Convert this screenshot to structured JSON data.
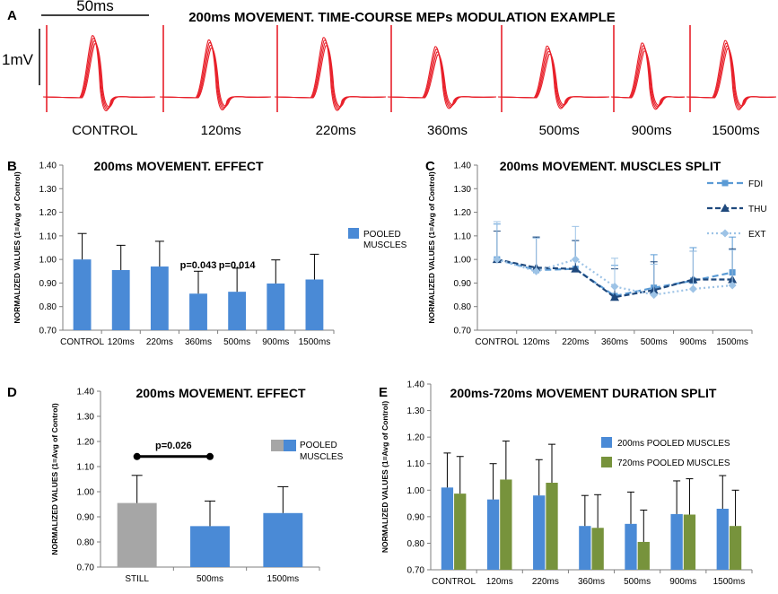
{
  "panelA": {
    "label": "A",
    "title": "200ms MOVEMENT. TIME-COURSE MEPs MODULATION EXAMPLE",
    "scale_time": "50ms",
    "scale_amp": "1mV",
    "trace_labels": [
      "CONTROL",
      "120ms",
      "220ms",
      "360ms",
      "500ms",
      "900ms",
      "1500ms"
    ],
    "trace_amplitudes": [
      1.0,
      0.93,
      0.97,
      0.82,
      0.83,
      0.88,
      0.92
    ],
    "colors": {
      "trace": "#e8202a"
    }
  },
  "chart_data": [
    {
      "panel": "B",
      "type": "bar",
      "title": "200ms MOVEMENT. EFFECT",
      "ylabel": "NORMALIZED VALUES (1=Avg of Control)",
      "ylim": [
        0.7,
        1.4
      ],
      "yticks": [
        "0.70",
        "0.80",
        "0.90",
        "1.00",
        "1.10",
        "1.20",
        "1.30",
        "1.40"
      ],
      "categories": [
        "CONTROL",
        "120ms",
        "220ms",
        "360ms",
        "500ms",
        "900ms",
        "1500ms"
      ],
      "series": [
        {
          "name": "POOLED MUSCLES",
          "color": "#4a8ad6",
          "values": [
            1.0,
            0.955,
            0.97,
            0.855,
            0.863,
            0.898,
            0.915
          ],
          "errors": [
            0.11,
            0.105,
            0.107,
            0.095,
            0.1,
            0.1,
            0.107
          ]
        }
      ],
      "legend": [
        "POOLED",
        "MUSCLES"
      ],
      "annotations": [
        "p=0.043",
        "p=0.014"
      ]
    },
    {
      "panel": "C",
      "type": "line",
      "title": "200ms MOVEMENT. MUSCLES SPLIT",
      "ylabel": "NORMALIZED VALUES (1=Avg of Control)",
      "ylim": [
        0.7,
        1.4
      ],
      "yticks": [
        "0.70",
        "0.80",
        "0.90",
        "1.00",
        "1.10",
        "1.20",
        "1.30",
        "1.40"
      ],
      "categories": [
        "CONTROL",
        "120ms",
        "220ms",
        "360ms",
        "500ms",
        "900ms",
        "1500ms"
      ],
      "series": [
        {
          "name": "FDI",
          "color": "#5b9bd5",
          "values": [
            1.0,
            0.955,
            0.96,
            0.845,
            0.88,
            0.91,
            0.945
          ],
          "errors": [
            0.15,
            0.14,
            0.12,
            0.13,
            0.14,
            0.14,
            0.15
          ]
        },
        {
          "name": "THU",
          "color": "#1f497d",
          "values": [
            1.0,
            0.965,
            0.96,
            0.84,
            0.87,
            0.915,
            0.915
          ],
          "errors": [
            0.12,
            0.13,
            0.12,
            0.12,
            0.12,
            0.12,
            0.13
          ]
        },
        {
          "name": "EXT",
          "color": "#9dc3e6",
          "values": [
            1.0,
            0.95,
            1.0,
            0.885,
            0.85,
            0.875,
            0.89
          ],
          "errors": [
            0.16,
            0.14,
            0.14,
            0.12,
            0.13,
            0.16,
            0.15
          ]
        }
      ]
    },
    {
      "panel": "D",
      "type": "bar",
      "title": "200ms MOVEMENT. EFFECT",
      "ylabel": "NORMALIZED VALUES (1=Avg of Control)",
      "ylim": [
        0.7,
        1.4
      ],
      "yticks": [
        "0.70",
        "0.80",
        "0.90",
        "1.00",
        "1.10",
        "1.20",
        "1.30",
        "1.40"
      ],
      "categories": [
        "STILL",
        "500ms",
        "1500ms"
      ],
      "colors": [
        "#a6a6a6",
        "#4a8ad6",
        "#4a8ad6"
      ],
      "values": [
        0.955,
        0.863,
        0.915
      ],
      "errors": [
        0.11,
        0.1,
        0.105
      ],
      "legend": [
        "POOLED",
        "MUSCLES"
      ],
      "annotation": "p=0.026"
    },
    {
      "panel": "E",
      "type": "bar",
      "title": "200ms-720ms MOVEMENT DURATION SPLIT",
      "ylabel": "NORMALIZED VALUES (1=Avg of Control)",
      "ylim": [
        0.7,
        1.4
      ],
      "yticks": [
        "0.70",
        "0.80",
        "0.90",
        "1.00",
        "1.10",
        "1.20",
        "1.30",
        "1.40"
      ],
      "categories": [
        "CONTROL",
        "120ms",
        "220ms",
        "360ms",
        "500ms",
        "900ms",
        "1500ms"
      ],
      "series": [
        {
          "name": "200ms POOLED MUSCLES",
          "color": "#4a8ad6",
          "values": [
            1.01,
            0.965,
            0.98,
            0.865,
            0.873,
            0.91,
            0.93
          ],
          "errors": [
            0.13,
            0.135,
            0.135,
            0.115,
            0.12,
            0.125,
            0.125
          ]
        },
        {
          "name": "720ms POOLED MUSCLES",
          "color": "#77933c",
          "values": [
            0.987,
            1.04,
            1.028,
            0.858,
            0.805,
            0.908,
            0.865
          ],
          "errors": [
            0.14,
            0.145,
            0.145,
            0.125,
            0.12,
            0.135,
            0.135
          ]
        }
      ]
    }
  ]
}
